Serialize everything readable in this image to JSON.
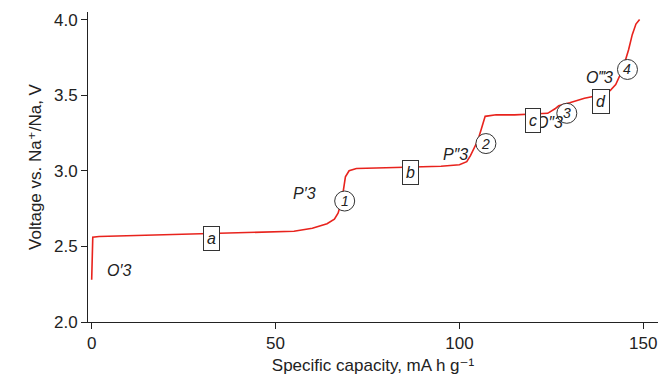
{
  "chart_data": {
    "type": "line",
    "x_label": "Specific capacity, mA h g⁻¹",
    "y_label": "Voltage vs. Na⁺/Na, V",
    "x": [
      0,
      0.3,
      2,
      10,
      20,
      30,
      40,
      50,
      55,
      60,
      64,
      66,
      67,
      68,
      68.5,
      69,
      70,
      72,
      80,
      90,
      95,
      100,
      102,
      103,
      104,
      105,
      106,
      106.5,
      107,
      110,
      115,
      120,
      124,
      126,
      127,
      130,
      134,
      138,
      141,
      142.5,
      144,
      145,
      146,
      147,
      148,
      149
    ],
    "values": [
      2.28,
      2.56,
      2.565,
      2.57,
      2.58,
      2.585,
      2.59,
      2.595,
      2.6,
      2.62,
      2.65,
      2.68,
      2.72,
      2.8,
      2.88,
      2.96,
      3.0,
      3.015,
      3.02,
      3.025,
      3.03,
      3.04,
      3.06,
      3.1,
      3.15,
      3.2,
      3.28,
      3.33,
      3.36,
      3.37,
      3.37,
      3.375,
      3.38,
      3.41,
      3.43,
      3.45,
      3.48,
      3.5,
      3.53,
      3.57,
      3.65,
      3.72,
      3.8,
      3.9,
      3.97,
      4.0
    ],
    "color": "#e8231d",
    "xlim": [
      -1,
      154
    ],
    "xticks": [
      0,
      50,
      100,
      150
    ],
    "ylim": [
      2.0,
      4.05
    ],
    "yticks": [
      {
        "value": 2,
        "label": "2.0"
      },
      2.5,
      {
        "value": 3,
        "label": "3.0"
      },
      3.5,
      {
        "value": 4,
        "label": "4.0"
      }
    ],
    "grid": false,
    "annotations": [
      {
        "text": "O′3",
        "x": 7.5,
        "y": 2.34
      },
      {
        "text": "P′3",
        "x": 58,
        "y": 2.85
      },
      {
        "text": "P″3",
        "x": 99,
        "y": 3.11
      },
      {
        "text": "O″3",
        "x": 124.5,
        "y": 3.32
      },
      {
        "text": "O‴3",
        "x": 138,
        "y": 3.62
      },
      {
        "text": "1",
        "x": 68.8,
        "y": 2.8,
        "marker": "circle"
      },
      {
        "text": "2",
        "x": 107.2,
        "y": 3.18,
        "marker": "circle"
      },
      {
        "text": "3",
        "x": 129.2,
        "y": 3.38,
        "marker": "circle"
      },
      {
        "text": "4",
        "x": 145.7,
        "y": 3.67,
        "marker": "circle"
      },
      {
        "text": "a",
        "x": 32.5,
        "y": 2.55,
        "marker": "box"
      },
      {
        "text": "b",
        "x": 86.6,
        "y": 2.99,
        "marker": "box"
      },
      {
        "text": "c",
        "x": 120,
        "y": 3.33,
        "marker": "box"
      },
      {
        "text": "d",
        "x": 138.4,
        "y": 3.46,
        "marker": "box"
      }
    ]
  }
}
